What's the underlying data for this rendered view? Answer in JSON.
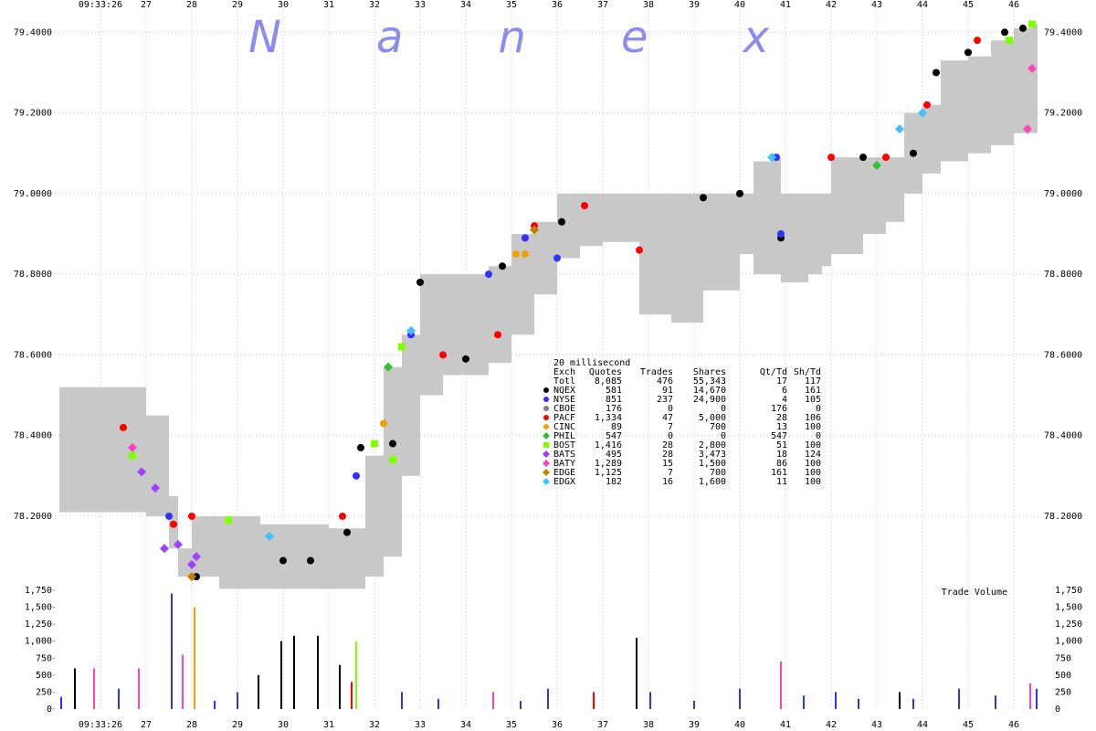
{
  "chart_data": [
    {
      "type": "band",
      "watermark": "N a n e x",
      "band_color": "#c8c8c8",
      "x": [
        25.1,
        26.5,
        27.0,
        27.5,
        27.7,
        28.0,
        28.6,
        29.5,
        30.0,
        31.0,
        31.4,
        31.8,
        32.2,
        32.6,
        33.0,
        33.5,
        34.0,
        34.5,
        35.0,
        35.5,
        36.0,
        36.5,
        37.0,
        37.8,
        38.5,
        39.2,
        40.0,
        40.3,
        40.7,
        40.9,
        41.5,
        41.8,
        42.0,
        42.7,
        43.2,
        43.6,
        44.0,
        44.4,
        45.0,
        45.5,
        46.0,
        46.4
      ],
      "high": [
        78.52,
        78.52,
        78.45,
        78.25,
        78.12,
        78.2,
        78.2,
        78.18,
        78.18,
        78.17,
        78.17,
        78.35,
        78.57,
        78.65,
        78.8,
        78.8,
        78.8,
        78.82,
        78.9,
        78.93,
        79.0,
        79.0,
        79.0,
        79.0,
        79.0,
        79.0,
        79.0,
        79.08,
        79.09,
        79.0,
        79.0,
        79.0,
        79.09,
        79.09,
        79.09,
        79.2,
        79.22,
        79.33,
        79.34,
        79.38,
        79.41,
        79.42
      ],
      "low": [
        78.21,
        78.21,
        78.2,
        78.12,
        78.05,
        78.05,
        78.02,
        78.02,
        78.02,
        78.02,
        78.02,
        78.05,
        78.1,
        78.3,
        78.5,
        78.55,
        78.55,
        78.58,
        78.65,
        78.75,
        78.84,
        78.87,
        78.88,
        78.7,
        78.68,
        78.76,
        78.85,
        78.8,
        78.8,
        78.78,
        78.8,
        78.82,
        78.85,
        78.9,
        78.93,
        79.0,
        79.05,
        79.08,
        79.1,
        79.12,
        79.15,
        79.15
      ],
      "xlim": [
        25,
        46.6
      ],
      "xticks": [
        {
          "value": 26,
          "label": "09:33:26"
        },
        27,
        28,
        29,
        30,
        31,
        32,
        33,
        34,
        35,
        36,
        37,
        38,
        39,
        40,
        41,
        42,
        43,
        44,
        45,
        46
      ],
      "ylim": [
        78.03,
        79.48
      ],
      "yticks": [
        {
          "value": 78.2,
          "label": "78.2000"
        },
        {
          "value": 78.4,
          "label": "78.4000"
        },
        {
          "value": 78.6,
          "label": "78.6000"
        },
        {
          "value": 78.8,
          "label": "78.8000"
        },
        {
          "value": 79.0,
          "label": "79.0000"
        },
        {
          "value": 79.2,
          "label": "79.2000"
        },
        {
          "value": 79.4,
          "label": "79.4000"
        }
      ],
      "grid": true,
      "table_title": "20 millisecond",
      "table_header": [
        "Exch",
        "Quotes",
        "Trades",
        "Shares",
        "Qt/Td",
        "Sh/Td"
      ],
      "total": {
        "name": "Totl",
        "stats": [
          "8,085",
          "476",
          "55,343",
          "17",
          "117"
        ]
      },
      "series": [
        {
          "name": "NQEX",
          "color": "#000000",
          "marker": "circle",
          "stats": [
            "581",
            "91",
            "14,670",
            "6",
            "161"
          ],
          "x": [
            28.1,
            30.0,
            30.6,
            31.4,
            31.7,
            32.0,
            32.4,
            33.0,
            34.0,
            34.8,
            36.1,
            39.2,
            40.0,
            40.9,
            42.7,
            43.8,
            44.3,
            45.0,
            45.8,
            46.2
          ],
          "values": [
            78.05,
            78.09,
            78.09,
            78.16,
            78.37,
            78.38,
            78.38,
            78.78,
            78.59,
            78.82,
            78.93,
            78.99,
            79.0,
            78.89,
            79.09,
            79.1,
            79.3,
            79.35,
            79.4,
            79.41
          ]
        },
        {
          "name": "NYSE",
          "color": "#3030ff",
          "marker": "circle",
          "stats": [
            "851",
            "237",
            "24,900",
            "4",
            "105"
          ],
          "x": [
            27.5,
            31.6,
            32.8,
            34.5,
            35.3,
            36.0,
            40.8,
            40.9
          ],
          "values": [
            78.2,
            78.3,
            78.65,
            78.8,
            78.89,
            78.84,
            79.09,
            78.9
          ]
        },
        {
          "name": "CBOE",
          "color": "#808080",
          "marker": "circle",
          "stats": [
            "176",
            "0",
            "0",
            "176",
            "0"
          ],
          "x": [],
          "values": []
        },
        {
          "name": "PACF",
          "color": "#ff0000",
          "marker": "circle",
          "stats": [
            "1,334",
            "47",
            "5,000",
            "28",
            "106"
          ],
          "x": [
            26.5,
            27.6,
            28.0,
            31.3,
            33.5,
            34.7,
            35.5,
            36.6,
            37.8,
            42.0,
            43.2,
            44.1,
            45.2
          ],
          "values": [
            78.42,
            78.18,
            78.2,
            78.2,
            78.6,
            78.65,
            78.92,
            78.97,
            78.86,
            79.09,
            79.09,
            79.22,
            79.38
          ]
        },
        {
          "name": "CINC",
          "color": "#f0a000",
          "marker": "circle",
          "stats": [
            "89",
            "7",
            "700",
            "13",
            "100"
          ],
          "x": [
            32.2,
            35.1,
            35.3
          ],
          "values": [
            78.43,
            78.85,
            78.85
          ]
        },
        {
          "name": "PHIL",
          "color": "#30c030",
          "marker": "diamond",
          "stats": [
            "547",
            "0",
            "0",
            "547",
            "0"
          ],
          "x": [
            32.3,
            43.0
          ],
          "values": [
            78.57,
            79.07
          ]
        },
        {
          "name": "BOST",
          "color": "#80ff00",
          "marker": "square",
          "stats": [
            "1,416",
            "28",
            "2,800",
            "51",
            "100"
          ],
          "x": [
            26.7,
            28.8,
            32.0,
            32.4,
            32.6,
            45.9,
            46.4
          ],
          "values": [
            78.35,
            78.19,
            78.38,
            78.34,
            78.62,
            79.38,
            79.42
          ]
        },
        {
          "name": "BATS",
          "color": "#a040ff",
          "marker": "diamond",
          "stats": [
            "495",
            "28",
            "3,473",
            "18",
            "124"
          ],
          "x": [
            26.9,
            27.2,
            27.4,
            27.7,
            28.0,
            28.1
          ],
          "values": [
            78.31,
            78.27,
            78.12,
            78.13,
            78.08,
            78.1
          ]
        },
        {
          "name": "BATY",
          "color": "#ff40c0",
          "marker": "diamond",
          "stats": [
            "1,289",
            "15",
            "1,500",
            "86",
            "100"
          ],
          "x": [
            26.7,
            46.3,
            46.4
          ],
          "values": [
            78.37,
            79.16,
            79.31
          ]
        },
        {
          "name": "EDGE",
          "color": "#c08000",
          "marker": "diamond",
          "stats": [
            "1,125",
            "7",
            "700",
            "161",
            "100"
          ],
          "x": [
            28.0,
            35.5
          ],
          "values": [
            78.05,
            78.91
          ]
        },
        {
          "name": "EDGX",
          "color": "#40c0ff",
          "marker": "diamond",
          "stats": [
            "182",
            "16",
            "1,600",
            "11",
            "100"
          ],
          "x": [
            29.7,
            32.8,
            40.7,
            43.5,
            44.0
          ],
          "values": [
            78.15,
            78.66,
            79.09,
            79.16,
            79.2
          ]
        }
      ]
    },
    {
      "type": "bar",
      "title": "Trade Volume",
      "x": [
        25.14,
        25.44,
        25.86,
        26.4,
        26.84,
        27.56,
        27.8,
        28.06,
        28.5,
        29.0,
        29.46,
        29.96,
        30.24,
        30.76,
        31.24,
        31.5,
        31.6,
        32.6,
        33.4,
        34.6,
        35.2,
        35.8,
        36.8,
        37.74,
        38.04,
        39.0,
        40.0,
        40.9,
        41.4,
        42.1,
        42.6,
        43.5,
        43.8,
        44.8,
        45.6,
        46.36,
        46.5
      ],
      "values": [
        180,
        600,
        600,
        300,
        600,
        1700,
        800,
        1500,
        120,
        250,
        500,
        1000,
        1080,
        1080,
        650,
        400,
        1000,
        250,
        150,
        250,
        120,
        300,
        250,
        1050,
        250,
        120,
        300,
        700,
        200,
        250,
        150,
        250,
        150,
        300,
        200,
        380,
        300
      ],
      "colors": [
        "#3030ff",
        "#000000",
        "#ff40c0",
        "#3030ff",
        "#ff40c0",
        "#3030ff",
        "#ff40c0",
        "#f0a000",
        "#3030ff",
        "#3030ff",
        "#000000",
        "#000000",
        "#000000",
        "#000000",
        "#000000",
        "#ff0000",
        "#80ff00",
        "#3030ff",
        "#3030ff",
        "#ff40c0",
        "#3030ff",
        "#3030ff",
        "#ff0000",
        "#000000",
        "#3030ff",
        "#3030ff",
        "#3030ff",
        "#ff40c0",
        "#3030ff",
        "#3030ff",
        "#3030ff",
        "#000000",
        "#3030ff",
        "#3030ff",
        "#3030ff",
        "#ff40c0",
        "#3030ff"
      ],
      "ylim": [
        0,
        1750
      ],
      "yticks": [
        0,
        250,
        500,
        750,
        {
          "value": 1000,
          "label": "1,000"
        },
        {
          "value": 1250,
          "label": "1,250"
        },
        {
          "value": 1500,
          "label": "1,500"
        },
        {
          "value": 1750,
          "label": "1,750"
        }
      ],
      "grid": true
    }
  ]
}
